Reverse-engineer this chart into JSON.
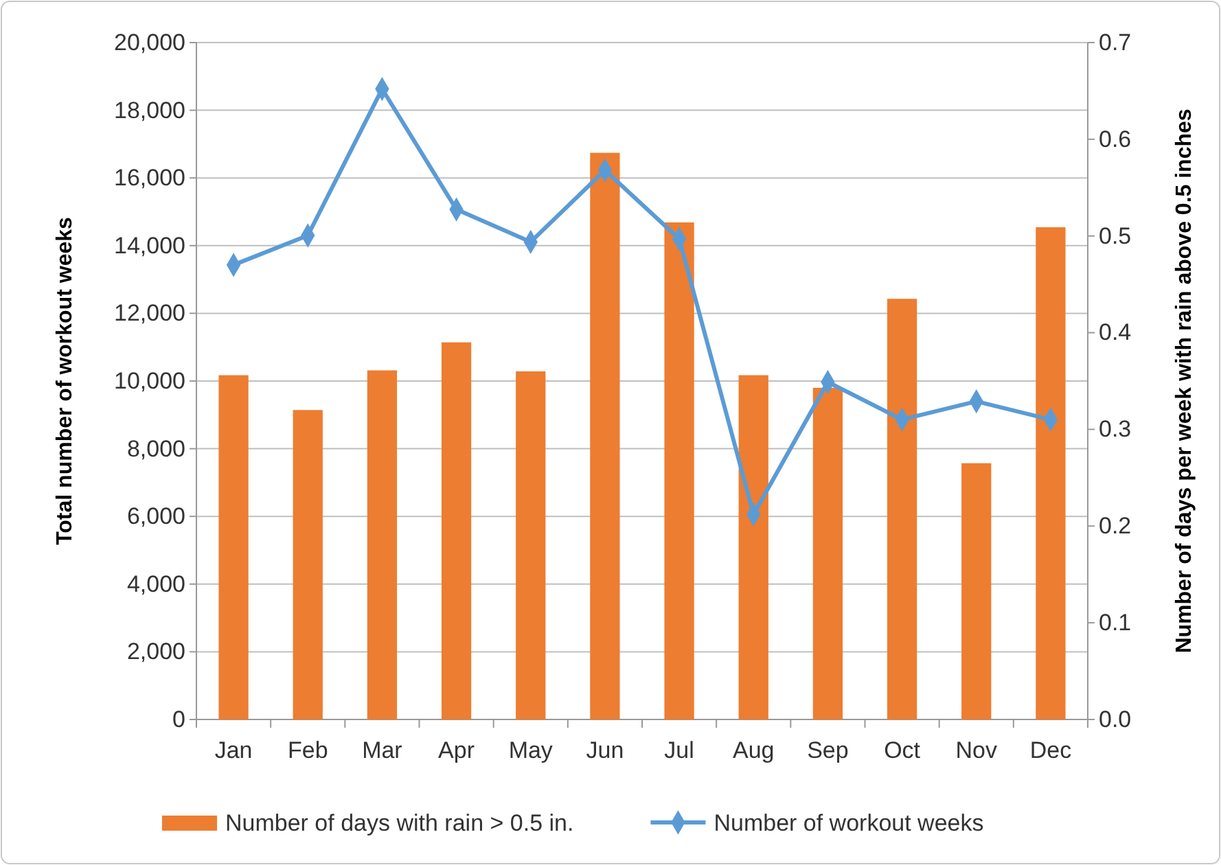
{
  "chart_data": {
    "type": "bar",
    "categories": [
      "Jan",
      "Feb",
      "Mar",
      "Apr",
      "May",
      "Jun",
      "Jul",
      "Aug",
      "Sep",
      "Oct",
      "Nov",
      "Dec"
    ],
    "ylabel": "Total number of workout weeks",
    "y2label": "Number of days per week with rain above 0.5 inches",
    "ylim": [
      0,
      20000
    ],
    "yticks": [
      {
        "value": 0,
        "label": "0"
      },
      {
        "value": 2000,
        "label": "2,000"
      },
      {
        "value": 4000,
        "label": "4,000"
      },
      {
        "value": 6000,
        "label": "6,000"
      },
      {
        "value": 8000,
        "label": "8,000"
      },
      {
        "value": 10000,
        "label": "10,000"
      },
      {
        "value": 12000,
        "label": "12,000"
      },
      {
        "value": 14000,
        "label": "14,000"
      },
      {
        "value": 16000,
        "label": "16,000"
      },
      {
        "value": 18000,
        "label": "18,000"
      },
      {
        "value": 20000,
        "label": "20,000"
      }
    ],
    "y2lim": [
      0,
      0.7
    ],
    "y2ticks": [
      {
        "value": 0,
        "label": "0.0"
      },
      {
        "value": 0.1,
        "label": "0.1"
      },
      {
        "value": 0.2,
        "label": "0.2"
      },
      {
        "value": 0.3,
        "label": "0.3"
      },
      {
        "value": 0.4,
        "label": "0.4"
      },
      {
        "value": 0.5,
        "label": "0.5"
      },
      {
        "value": 0.6,
        "label": "0.6"
      },
      {
        "value": 0.7,
        "label": "0.7"
      }
    ],
    "grid": "y",
    "legend": "bottom",
    "series": [
      {
        "name": "Number of days with rain > 0.5 in.",
        "axis": "y2",
        "color": "#ed7d31",
        "values": [
          0.356,
          0.32,
          0.361,
          0.39,
          0.36,
          0.586,
          0.514,
          0.356,
          0.343,
          0.435,
          0.265,
          0.509
        ]
      },
      {
        "name": "Number of workout weeks",
        "type": "line",
        "color": "#5b9bd5",
        "marker": "diamond",
        "line_style": "solid",
        "values": [
          13430,
          14300,
          18630,
          15070,
          14110,
          16230,
          14200,
          6060,
          9970,
          8860,
          9400,
          8860
        ]
      }
    ]
  }
}
